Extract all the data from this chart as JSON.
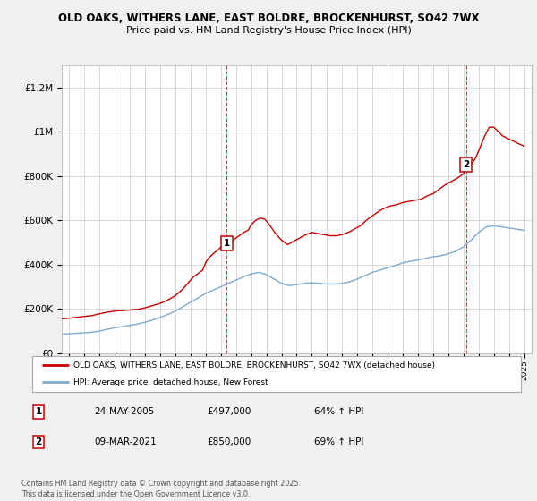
{
  "title1": "OLD OAKS, WITHERS LANE, EAST BOLDRE, BROCKENHURST, SO42 7WX",
  "title2": "Price paid vs. HM Land Registry's House Price Index (HPI)",
  "background_color": "#f0f0f0",
  "plot_background": "#ffffff",
  "red_color": "#cc0000",
  "blue_color": "#7eaacc",
  "vline_color": "#cc0000",
  "legend_label_red": "OLD OAKS, WITHERS LANE, EAST BOLDRE, BROCKENHURST, SO42 7WX (detached house)",
  "legend_label_blue": "HPI: Average price, detached house, New Forest",
  "sale1_year": 2005.38,
  "sale1_price": 497000,
  "sale1_date": "24-MAY-2005",
  "sale1_hpi": "64% ↑ HPI",
  "sale2_year": 2021.17,
  "sale2_price": 850000,
  "sale2_date": "09-MAR-2021",
  "sale2_hpi": "69% ↑ HPI",
  "footer": "Contains HM Land Registry data © Crown copyright and database right 2025.\nThis data is licensed under the Open Government Licence v3.0.",
  "ylim": [
    0,
    1300000
  ],
  "xlim_start": 1994.5,
  "xlim_end": 2025.5,
  "red_x": [
    1994.5,
    1995,
    1995.5,
    1996,
    1996.5,
    1997,
    1997.5,
    1998,
    1998.3,
    1998.7,
    1999,
    1999.5,
    2000,
    2000.5,
    2001,
    2001.5,
    2002,
    2002.5,
    2003,
    2003.2,
    2003.5,
    2003.8,
    2004,
    2004.2,
    2004.5,
    2004.8,
    2005,
    2005.38,
    2005.8,
    2006.2,
    2006.5,
    2006.8,
    2007.0,
    2007.3,
    2007.6,
    2007.9,
    2008.2,
    2008.6,
    2009.0,
    2009.4,
    2009.8,
    2010.2,
    2010.6,
    2011.0,
    2011.4,
    2011.8,
    2012.2,
    2012.6,
    2013.0,
    2013.4,
    2013.8,
    2014.2,
    2014.6,
    2015.0,
    2015.4,
    2015.8,
    2016.2,
    2016.6,
    2017.0,
    2017.4,
    2017.8,
    2018.2,
    2018.6,
    2019.0,
    2019.4,
    2019.8,
    2020.2,
    2020.6,
    2021.0,
    2021.17,
    2021.5,
    2021.8,
    2022.1,
    2022.4,
    2022.7,
    2023.0,
    2023.3,
    2023.6,
    2023.9,
    2024.2,
    2024.5,
    2024.8,
    2025.0
  ],
  "red_y": [
    155000,
    158000,
    162000,
    166000,
    170000,
    178000,
    185000,
    190000,
    192000,
    193000,
    195000,
    198000,
    205000,
    215000,
    225000,
    240000,
    260000,
    290000,
    330000,
    345000,
    360000,
    375000,
    410000,
    430000,
    450000,
    465000,
    480000,
    497000,
    510000,
    530000,
    545000,
    555000,
    580000,
    600000,
    610000,
    605000,
    580000,
    540000,
    510000,
    490000,
    505000,
    520000,
    535000,
    545000,
    540000,
    535000,
    530000,
    530000,
    535000,
    545000,
    560000,
    575000,
    600000,
    620000,
    640000,
    655000,
    665000,
    670000,
    680000,
    685000,
    690000,
    695000,
    710000,
    720000,
    740000,
    760000,
    775000,
    790000,
    810000,
    830000,
    850000,
    880000,
    930000,
    980000,
    1020000,
    1020000,
    1000000,
    980000,
    970000,
    960000,
    950000,
    940000,
    935000
  ],
  "blue_x": [
    1994.5,
    1995,
    1995.5,
    1996,
    1996.5,
    1997,
    1997.5,
    1998,
    1998.5,
    1999,
    1999.5,
    2000,
    2000.5,
    2001,
    2001.5,
    2002,
    2002.5,
    2003,
    2003.5,
    2004,
    2004.5,
    2005,
    2005.5,
    2006,
    2006.5,
    2007,
    2007.5,
    2008,
    2008.5,
    2009,
    2009.5,
    2010,
    2010.5,
    2011,
    2011.5,
    2012,
    2012.5,
    2013,
    2013.5,
    2014,
    2014.5,
    2015,
    2015.5,
    2016,
    2016.5,
    2017,
    2017.5,
    2018,
    2018.5,
    2019,
    2019.5,
    2020,
    2020.5,
    2021,
    2021.5,
    2022,
    2022.5,
    2023,
    2023.5,
    2024,
    2024.5,
    2025
  ],
  "blue_y": [
    85000,
    88000,
    90000,
    92000,
    95000,
    100000,
    108000,
    115000,
    120000,
    126000,
    132000,
    140000,
    150000,
    162000,
    175000,
    190000,
    210000,
    230000,
    250000,
    270000,
    285000,
    300000,
    315000,
    330000,
    345000,
    358000,
    365000,
    355000,
    335000,
    315000,
    305000,
    310000,
    315000,
    318000,
    315000,
    312000,
    312000,
    315000,
    322000,
    335000,
    350000,
    365000,
    375000,
    385000,
    395000,
    408000,
    415000,
    420000,
    428000,
    435000,
    440000,
    448000,
    460000,
    480000,
    510000,
    545000,
    570000,
    575000,
    570000,
    565000,
    560000,
    555000
  ]
}
